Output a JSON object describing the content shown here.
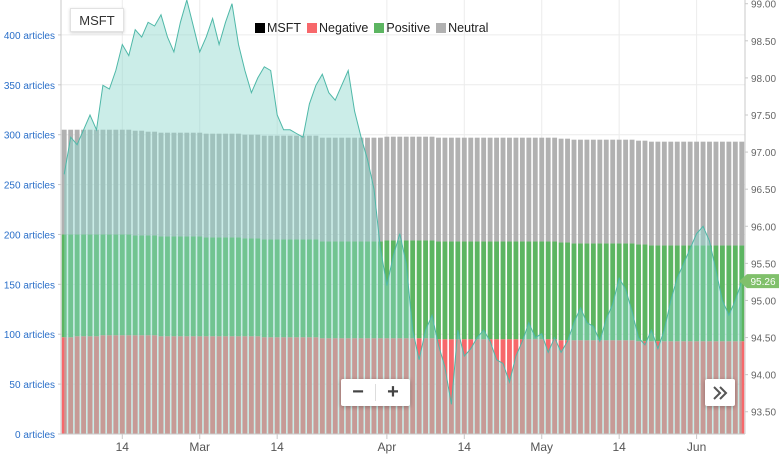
{
  "ticker_button": "MSFT",
  "legend": [
    {
      "label": "MSFT",
      "color": "#000000"
    },
    {
      "label": "Negative",
      "color": "#f7686b"
    },
    {
      "label": "Positive",
      "color": "#5cb561"
    },
    {
      "label": "Neutral",
      "color": "#b1b1b1"
    }
  ],
  "controls": {
    "zoom_out": "−",
    "zoom_in": "+",
    "next": "»"
  },
  "chart_data": {
    "type": "bar",
    "title": "",
    "stacked_series": [
      {
        "name": "Negative",
        "color": "#f7686b"
      },
      {
        "name": "Positive",
        "color": "#5cb561"
      },
      {
        "name": "Neutral",
        "color": "#b1b1b1"
      }
    ],
    "left_axis": {
      "unit": "articles",
      "ticks": [
        0,
        50,
        100,
        150,
        200,
        250,
        300,
        350,
        400
      ],
      "tick_labels": [
        "0 articles",
        "50 articles",
        "100 articles",
        "150 articles",
        "200 articles",
        "250 articles",
        "300 articles",
        "350 articles",
        "400 articles"
      ],
      "range": [
        0,
        435
      ]
    },
    "right_axis": {
      "ticks": [
        93.5,
        94.0,
        94.5,
        95.0,
        95.5,
        96.0,
        96.5,
        97.0,
        97.5,
        98.0,
        98.5,
        99.0
      ],
      "tick_labels": [
        "93.50",
        "94.00",
        "94.50",
        "95.00",
        "95.50",
        "96.00",
        "96.50",
        "97.00",
        "97.50",
        "98.00",
        "98.50",
        "99.00"
      ],
      "range": [
        93.2,
        99.05
      ]
    },
    "x_axis": {
      "tick_labels": [
        "14",
        "Mar",
        "14",
        "Apr",
        "14",
        "May",
        "14",
        "Jun"
      ],
      "tick_index": [
        9,
        21,
        33,
        50,
        62,
        74,
        86,
        98
      ],
      "count": 106
    },
    "price_label": "95.26",
    "negative": [
      97,
      97,
      98,
      98,
      98,
      98,
      99,
      99,
      99,
      99,
      99,
      99,
      99,
      99,
      99,
      98,
      98,
      98,
      98,
      98,
      98,
      98,
      98,
      98,
      98,
      98,
      98,
      98,
      98,
      98,
      98,
      97,
      97,
      97,
      97,
      97,
      97,
      97,
      97,
      97,
      96,
      96,
      96,
      96,
      96,
      96,
      96,
      96,
      96,
      96,
      96,
      96,
      96,
      96,
      96,
      96,
      96,
      96,
      95,
      95,
      95,
      95,
      95,
      95,
      95,
      95,
      95,
      95,
      95,
      95,
      95,
      95,
      95,
      95,
      95,
      95,
      95,
      94,
      94,
      94,
      94,
      94,
      94,
      94,
      94,
      94,
      94,
      94,
      94,
      93,
      93,
      93,
      93,
      93,
      93,
      93,
      93,
      93,
      93,
      93,
      93,
      93,
      93,
      93,
      93,
      93
    ],
    "positive": [
      103,
      103,
      102,
      102,
      102,
      102,
      101,
      101,
      101,
      101,
      101,
      100,
      100,
      100,
      100,
      100,
      100,
      100,
      100,
      100,
      100,
      100,
      99,
      99,
      99,
      99,
      99,
      99,
      98,
      98,
      98,
      98,
      98,
      98,
      98,
      98,
      98,
      98,
      98,
      98,
      97,
      97,
      97,
      97,
      97,
      97,
      97,
      97,
      97,
      97,
      98,
      98,
      98,
      98,
      98,
      98,
      98,
      98,
      98,
      98,
      98,
      98,
      98,
      98,
      98,
      98,
      98,
      98,
      98,
      98,
      98,
      98,
      98,
      98,
      98,
      98,
      98,
      98,
      98,
      97,
      97,
      97,
      97,
      97,
      97,
      97,
      97,
      97,
      97,
      97,
      97,
      96,
      96,
      96,
      96,
      96,
      96,
      96,
      96,
      96,
      96,
      96,
      96,
      96,
      96,
      96
    ],
    "neutral": [
      105,
      105,
      105,
      105,
      105,
      105,
      105,
      105,
      105,
      105,
      105,
      105,
      105,
      104,
      104,
      104,
      104,
      104,
      104,
      104,
      104,
      104,
      104,
      104,
      104,
      104,
      104,
      104,
      104,
      104,
      104,
      104,
      104,
      104,
      104,
      104,
      104,
      104,
      104,
      104,
      104,
      104,
      104,
      104,
      104,
      104,
      104,
      104,
      104,
      104,
      104,
      104,
      104,
      104,
      104,
      104,
      104,
      104,
      104,
      104,
      104,
      104,
      104,
      104,
      104,
      104,
      104,
      104,
      104,
      104,
      104,
      104,
      104,
      104,
      104,
      104,
      104,
      104,
      104,
      104,
      104,
      104,
      104,
      104,
      104,
      104,
      104,
      104,
      104,
      104,
      104,
      104,
      104,
      104,
      104,
      104,
      104,
      104,
      104,
      104,
      104,
      104,
      104,
      104,
      104,
      104
    ],
    "price": [
      96.7,
      97.2,
      97.1,
      97.3,
      97.5,
      97.3,
      97.9,
      97.85,
      98.1,
      98.45,
      98.3,
      98.65,
      98.55,
      98.75,
      98.7,
      98.85,
      98.55,
      98.35,
      98.75,
      99.05,
      98.7,
      98.35,
      98.55,
      98.8,
      98.45,
      98.75,
      99.0,
      98.45,
      98.1,
      97.8,
      98.0,
      98.15,
      98.1,
      97.5,
      97.3,
      97.3,
      97.25,
      97.2,
      97.65,
      97.9,
      98.05,
      97.8,
      97.7,
      97.9,
      98.1,
      97.55,
      97.2,
      96.9,
      96.5,
      95.7,
      95.2,
      95.6,
      95.9,
      95.5,
      94.6,
      94.2,
      94.6,
      94.8,
      94.4,
      94.1,
      93.6,
      94.6,
      94.25,
      94.35,
      94.5,
      94.6,
      94.45,
      94.2,
      94.15,
      93.9,
      94.25,
      94.45,
      94.7,
      94.5,
      94.55,
      94.3,
      94.5,
      94.3,
      94.45,
      94.7,
      94.9,
      94.7,
      94.65,
      94.45,
      94.75,
      94.95,
      95.3,
      95.15,
      94.85,
      94.5,
      94.4,
      94.6,
      94.35,
      94.6,
      95.0,
      95.3,
      95.5,
      95.7,
      95.9,
      96.0,
      95.8,
      95.4,
      95.0,
      94.8,
      95.0,
      95.26
    ]
  }
}
